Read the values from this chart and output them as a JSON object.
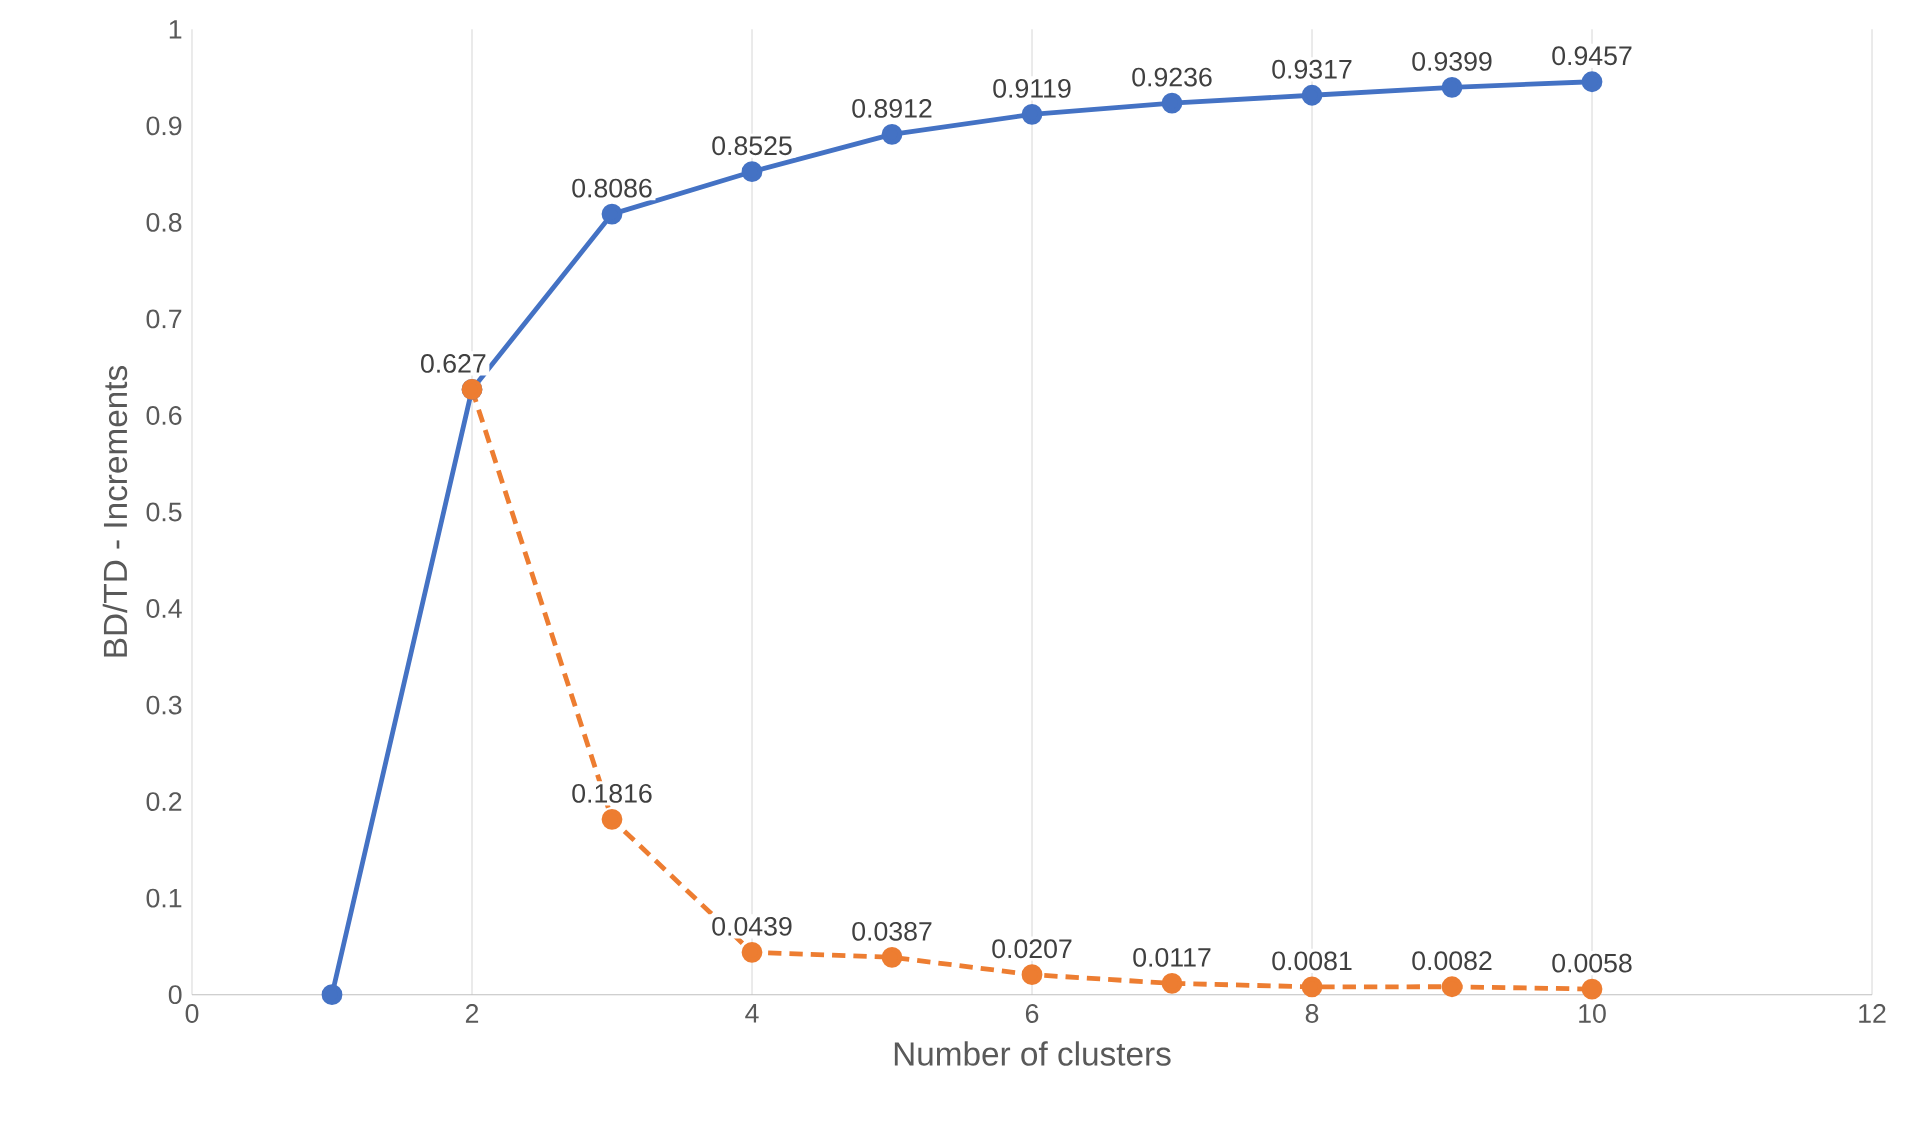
{
  "chart_data": {
    "type": "line",
    "xlabel": "Number of clusters",
    "ylabel": "BD/TD - Increments",
    "xlim": [
      0,
      12
    ],
    "xticks": [
      0,
      2,
      4,
      6,
      8,
      10,
      12
    ],
    "ylim": [
      0,
      1
    ],
    "yticks": [
      0,
      0.1,
      0.2,
      0.3,
      0.4,
      0.5,
      0.6,
      0.7,
      0.8,
      0.9,
      1
    ],
    "grid": "x",
    "marker": "circle",
    "series": [
      {
        "color": "#4472c4",
        "line_style": "solid",
        "x": [
          1,
          2,
          3,
          4,
          5,
          6,
          7,
          8,
          9,
          10
        ],
        "values": [
          0,
          0.627,
          0.8086,
          0.8525,
          0.8912,
          0.9119,
          0.9236,
          0.9317,
          0.9399,
          0.9457
        ],
        "value_labels": [
          null,
          "0.627",
          "0.8086",
          "0.8525",
          "0.8912",
          "0.9119",
          "0.9236",
          "0.9317",
          "0.9399",
          "0.9457"
        ]
      },
      {
        "color": "#ed7d31",
        "line_style": "dashed",
        "x": [
          2,
          3,
          4,
          5,
          6,
          7,
          8,
          9,
          10
        ],
        "values": [
          0.627,
          0.1816,
          0.0439,
          0.0387,
          0.0207,
          0.0117,
          0.0081,
          0.0082,
          0.0058
        ],
        "value_labels": [
          null,
          "0.1816",
          "0.0439",
          "0.0387",
          "0.0207",
          "0.0117",
          "0.0081",
          "0.0082",
          "0.0058"
        ]
      }
    ]
  }
}
